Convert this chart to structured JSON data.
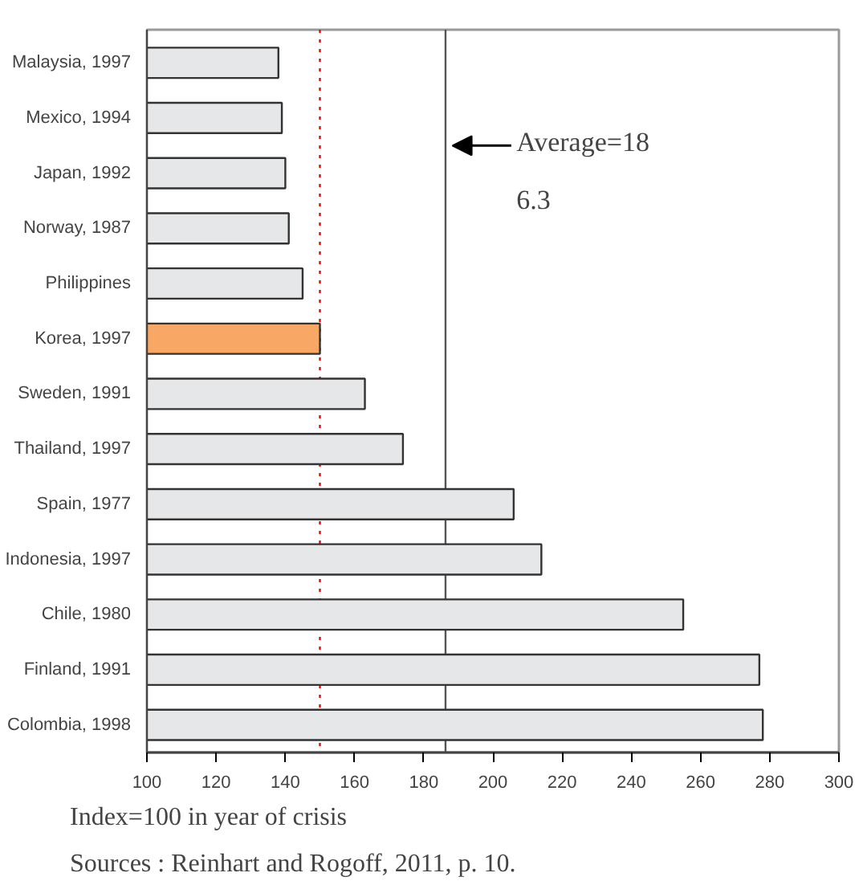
{
  "chart_data": {
    "type": "bar",
    "orientation": "horizontal",
    "categories": [
      "Malaysia, 1997",
      "Mexico, 1994",
      "Japan, 1992",
      "Norway, 1987",
      "Philippines",
      "Korea, 1997",
      "Sweden, 1991",
      "Thailand, 1997",
      "Spain, 1977",
      "Indonesia, 1997",
      "Chile, 1980",
      "Finland, 1991",
      "Colombia, 1998"
    ],
    "values": [
      138,
      139,
      140,
      141,
      145,
      150,
      163,
      174,
      206,
      214,
      255,
      277,
      278
    ],
    "colors": [
      "#e6e7e8",
      "#e6e7e8",
      "#e6e7e8",
      "#e6e7e8",
      "#e6e7e8",
      "#f9a765",
      "#e6e7e8",
      "#e6e7e8",
      "#e6e7e8",
      "#e6e7e8",
      "#e6e7e8",
      "#e6e7e8",
      "#e6e7e8"
    ],
    "xlim": [
      100,
      300
    ],
    "xticks": [
      100,
      120,
      140,
      160,
      180,
      200,
      220,
      240,
      260,
      280,
      300
    ],
    "grid": false,
    "ref_lines": [
      {
        "axis": "x",
        "value": 186.3,
        "label": "Average=186.3",
        "color": "#555555",
        "line_style": "solid"
      },
      {
        "axis": "x",
        "value": 150,
        "label": null,
        "color": "#ff0000",
        "line_style": "dotted"
      }
    ],
    "annotations": [
      "Index=100 in year of crisis",
      "Sources : Reinhart and Rogoff, 2011, p. 10."
    ]
  }
}
